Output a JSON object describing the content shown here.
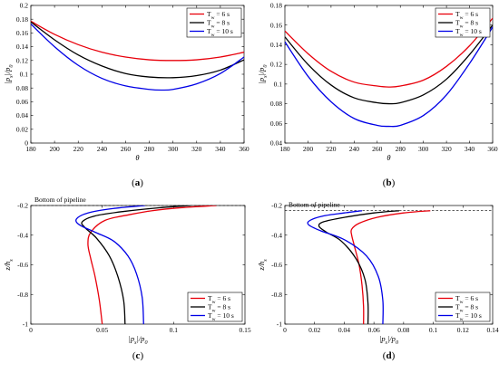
{
  "colors": {
    "6s": "#e8000b",
    "8s": "#000000",
    "10s": "#0000e6"
  },
  "chart_data": [
    {
      "id": "a",
      "type": "line",
      "panel_label": "a",
      "xlabel": "θ",
      "ylabel": "|p_s|/p_0",
      "ylabel_parts": {
        "main": "|p",
        "sub": "s",
        "mid": "|/p",
        "sub2": "0"
      },
      "xlim": [
        180,
        360
      ],
      "ylim": [
        0,
        0.2
      ],
      "xticks": [
        180,
        200,
        220,
        240,
        260,
        280,
        300,
        320,
        340,
        360
      ],
      "yticks": [
        0,
        0.02,
        0.04,
        0.06,
        0.08,
        0.1,
        0.12,
        0.14,
        0.16,
        0.18,
        0.2
      ],
      "legend_position": "top-right",
      "grid": false,
      "series": [
        {
          "name": "T_w = 6 s",
          "legend": {
            "T": "T",
            "sub": "w",
            "rest": " = 6 s"
          },
          "color_key": "6s",
          "x": [
            180,
            200,
            220,
            240,
            260,
            280,
            300,
            320,
            340,
            360
          ],
          "y": [
            0.177,
            0.158,
            0.143,
            0.132,
            0.125,
            0.121,
            0.12,
            0.121,
            0.125,
            0.132
          ]
        },
        {
          "name": "T_w = 8 s",
          "legend": {
            "T": "T",
            "sub": "w",
            "rest": " = 8 s"
          },
          "color_key": "8s",
          "x": [
            180,
            200,
            220,
            240,
            260,
            280,
            300,
            320,
            340,
            360
          ],
          "y": [
            0.176,
            0.15,
            0.128,
            0.112,
            0.101,
            0.096,
            0.095,
            0.098,
            0.106,
            0.121
          ]
        },
        {
          "name": "T_w = 10 s",
          "legend": {
            "T": "T",
            "sub": "w",
            "rest": " = 10 s"
          },
          "color_key": "10s",
          "x": [
            180,
            200,
            220,
            240,
            260,
            280,
            290,
            300,
            320,
            340,
            360
          ],
          "y": [
            0.173,
            0.14,
            0.113,
            0.094,
            0.083,
            0.078,
            0.077,
            0.078,
            0.086,
            0.101,
            0.125
          ]
        }
      ]
    },
    {
      "id": "b",
      "type": "line",
      "panel_label": "b",
      "xlabel": "θ",
      "ylabel": "|p_s|/p_0",
      "ylabel_parts": {
        "main": "|p",
        "sub": "s",
        "mid": "|/p",
        "sub2": "0"
      },
      "xlim": [
        180,
        360
      ],
      "ylim": [
        0.04,
        0.18
      ],
      "xticks": [
        180,
        200,
        220,
        240,
        260,
        280,
        300,
        320,
        340,
        360
      ],
      "yticks": [
        0.04,
        0.06,
        0.08,
        0.1,
        0.12,
        0.14,
        0.16,
        0.18
      ],
      "legend_position": "top-right",
      "grid": false,
      "series": [
        {
          "name": "T_w = 6 s",
          "legend": {
            "T": "T",
            "sub": "w",
            "rest": " = 6 s"
          },
          "color_key": "6s",
          "x": [
            180,
            200,
            220,
            240,
            260,
            270,
            280,
            300,
            320,
            340,
            360
          ],
          "y": [
            0.154,
            0.131,
            0.113,
            0.102,
            0.098,
            0.097,
            0.098,
            0.104,
            0.118,
            0.139,
            0.167
          ]
        },
        {
          "name": "T_w = 8 s",
          "legend": {
            "T": "T",
            "sub": "w",
            "rest": " = 8 s"
          },
          "color_key": "8s",
          "x": [
            180,
            200,
            220,
            240,
            260,
            270,
            280,
            300,
            320,
            340,
            360
          ],
          "y": [
            0.148,
            0.12,
            0.099,
            0.086,
            0.081,
            0.08,
            0.081,
            0.089,
            0.105,
            0.13,
            0.16
          ]
        },
        {
          "name": "T_w = 10 s",
          "legend": {
            "T": "T",
            "sub": "w",
            "rest": " = 10 s"
          },
          "color_key": "10s",
          "x": [
            180,
            200,
            220,
            240,
            260,
            270,
            280,
            300,
            320,
            340,
            360
          ],
          "y": [
            0.143,
            0.108,
            0.082,
            0.065,
            0.058,
            0.057,
            0.058,
            0.068,
            0.089,
            0.121,
            0.158
          ]
        }
      ]
    },
    {
      "id": "c",
      "type": "line",
      "panel_label": "c",
      "xlabel": "|p_s|/p_0",
      "xlabel_parts": {
        "main": "|p",
        "sub": "s",
        "mid": "|/p",
        "sub2": "0"
      },
      "ylabel": "z/h_s",
      "ylabel_parts": {
        "main": "z/h",
        "sub": "s"
      },
      "xlim": [
        0,
        0.15
      ],
      "ylim": [
        -1,
        -0.2
      ],
      "xticks": [
        0,
        0.05,
        0.1,
        0.15
      ],
      "yticks": [
        -1,
        -0.8,
        -0.6,
        -0.4,
        -0.2
      ],
      "legend_position": "bottom-right",
      "grid": false,
      "annotation": "Bottom of pipeline",
      "reference_line_y": -0.2,
      "series": [
        {
          "name": "T_w = 6 s",
          "legend": {
            "T": "T",
            "sub": "w",
            "rest": " = 6 s"
          },
          "color_key": "6s",
          "x": [
            0.13,
            0.105,
            0.085,
            0.07,
            0.052,
            0.042,
            0.04,
            0.042,
            0.045,
            0.048,
            0.05
          ],
          "y": [
            -0.2,
            -0.215,
            -0.235,
            -0.26,
            -0.3,
            -0.38,
            -0.46,
            -0.56,
            -0.68,
            -0.84,
            -1.0
          ]
        },
        {
          "name": "T_w = 8 s",
          "legend": {
            "T": "T",
            "sub": "w",
            "rest": " = 8 s"
          },
          "color_key": "8s",
          "x": [
            0.112,
            0.09,
            0.065,
            0.045,
            0.036,
            0.038,
            0.046,
            0.055,
            0.061,
            0.065,
            0.066
          ],
          "y": [
            -0.2,
            -0.215,
            -0.24,
            -0.27,
            -0.31,
            -0.35,
            -0.42,
            -0.54,
            -0.68,
            -0.84,
            -1.0
          ]
        },
        {
          "name": "T_w = 10 s",
          "legend": {
            "T": "T",
            "sub": "w",
            "rest": " = 10 s"
          },
          "color_key": "10s",
          "x": [
            0.08,
            0.058,
            0.04,
            0.032,
            0.034,
            0.045,
            0.058,
            0.068,
            0.074,
            0.078,
            0.079
          ],
          "y": [
            -0.2,
            -0.22,
            -0.25,
            -0.29,
            -0.33,
            -0.38,
            -0.44,
            -0.54,
            -0.66,
            -0.82,
            -1.0
          ]
        }
      ]
    },
    {
      "id": "d",
      "type": "line",
      "panel_label": "d",
      "xlabel": "|p_s|/p_0",
      "xlabel_parts": {
        "main": "|p",
        "sub": "s",
        "mid": "|/p",
        "sub2": "0"
      },
      "ylabel": "z/h_s",
      "ylabel_parts": {
        "main": "z/h",
        "sub": "s"
      },
      "xlim": [
        0,
        0.14
      ],
      "ylim": [
        -1,
        -0.2
      ],
      "xticks": [
        0,
        0.02,
        0.04,
        0.06,
        0.08,
        0.1,
        0.12,
        0.14
      ],
      "yticks": [
        -1,
        -0.8,
        -0.6,
        -0.4,
        -0.2
      ],
      "legend_position": "bottom-right",
      "grid": false,
      "annotation": "Bottom of pipeline",
      "reference_line_y": -0.235,
      "series": [
        {
          "name": "T_w = 6 s",
          "legend": {
            "T": "T",
            "sub": "w",
            "rest": " = 6 s"
          },
          "color_key": "6s",
          "x": [
            0.098,
            0.08,
            0.062,
            0.05,
            0.045,
            0.045,
            0.047,
            0.05,
            0.052,
            0.053,
            0.053
          ],
          "y": [
            -0.235,
            -0.25,
            -0.28,
            -0.32,
            -0.36,
            -0.4,
            -0.48,
            -0.6,
            -0.74,
            -0.88,
            -1.0
          ]
        },
        {
          "name": "T_w = 8 s",
          "legend": {
            "T": "T",
            "sub": "w",
            "rest": " = 8 s"
          },
          "color_key": "8s",
          "x": [
            0.077,
            0.06,
            0.04,
            0.026,
            0.023,
            0.028,
            0.038,
            0.048,
            0.054,
            0.056,
            0.056
          ],
          "y": [
            -0.235,
            -0.25,
            -0.28,
            -0.31,
            -0.34,
            -0.38,
            -0.44,
            -0.56,
            -0.7,
            -0.86,
            -1.0
          ]
        },
        {
          "name": "T_w = 10 s",
          "legend": {
            "T": "T",
            "sub": "w",
            "rest": " = 10 s"
          },
          "color_key": "10s",
          "x": [
            0.052,
            0.04,
            0.026,
            0.017,
            0.016,
            0.024,
            0.04,
            0.055,
            0.063,
            0.066,
            0.066
          ],
          "y": [
            -0.235,
            -0.25,
            -0.27,
            -0.3,
            -0.33,
            -0.37,
            -0.43,
            -0.54,
            -0.68,
            -0.84,
            -1.0
          ]
        }
      ]
    }
  ]
}
